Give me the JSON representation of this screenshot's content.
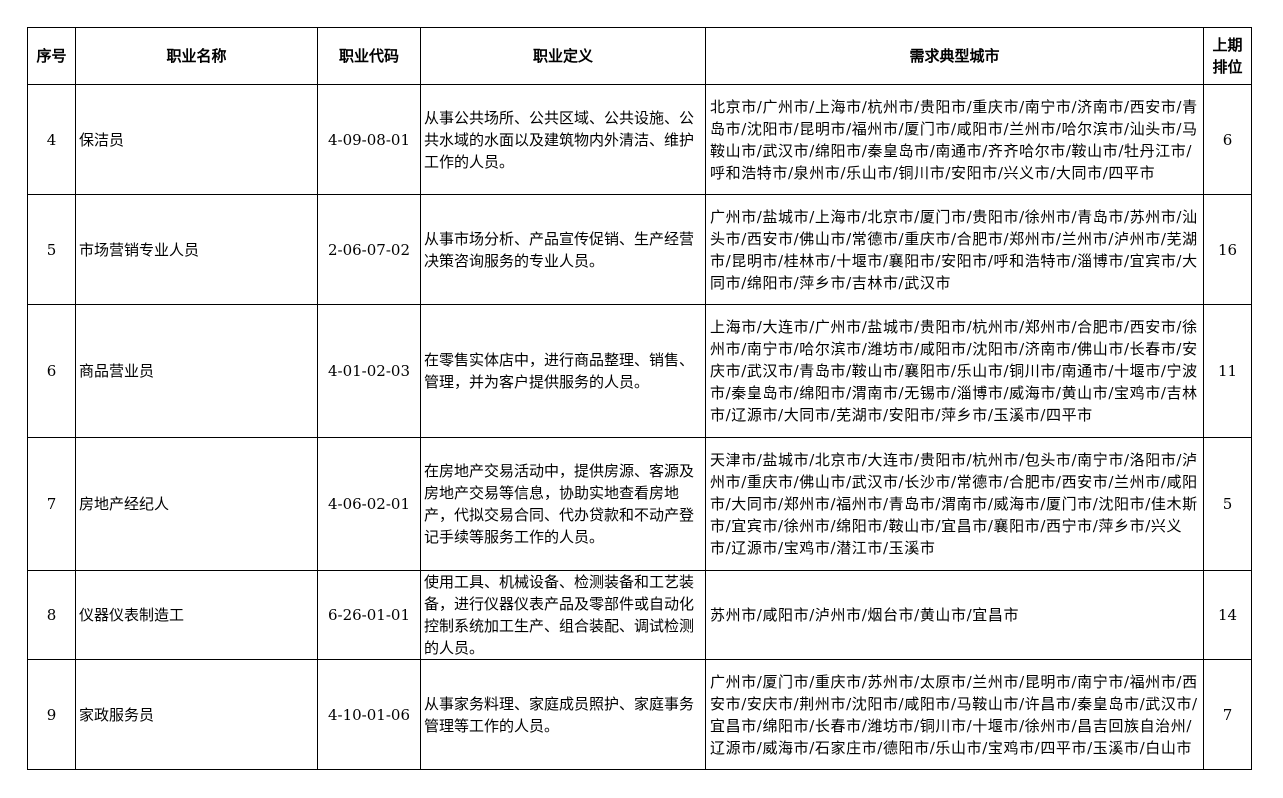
{
  "headers": [
    "序号",
    "职业名称",
    "职业代码",
    "职业定义",
    "需求典型城市",
    "上期排位"
  ],
  "rows": [
    {
      "no": "4",
      "name": "保洁员",
      "code": "4-09-08-01",
      "definition": "从事公共场所、公共区域、公共设施、公共水域的水面以及建筑物内外清洁、维护工作的人员。",
      "cities": "北京市/广州市/上海市/杭州市/贵阳市/重庆市/南宁市/济南市/西安市/青岛市/沈阳市/昆明市/福州市/厦门市/咸阳市/兰州市/哈尔滨市/汕头市/马鞍山市/武汉市/绵阳市/秦皇岛市/南通市/齐齐哈尔市/鞍山市/牡丹江市/呼和浩特市/泉州市/乐山市/铜川市/安阳市/兴义市/大同市/四平市",
      "prev": "6"
    },
    {
      "no": "5",
      "name": "市场营销专业人员",
      "code": "2-06-07-02",
      "definition": "从事市场分析、产品宣传促销、生产经营决策咨询服务的专业人员。",
      "cities": "广州市/盐城市/上海市/北京市/厦门市/贵阳市/徐州市/青岛市/苏州市/汕头市/西安市/佛山市/常德市/重庆市/合肥市/郑州市/兰州市/泸州市/芜湖市/昆明市/桂林市/十堰市/襄阳市/安阳市/呼和浩特市/淄博市/宜宾市/大同市/绵阳市/萍乡市/吉林市/武汉市",
      "prev": "16"
    },
    {
      "no": "6",
      "name": "商品营业员",
      "code": "4-01-02-03",
      "definition": "在零售实体店中，进行商品整理、销售、管理，并为客户提供服务的人员。",
      "cities": "上海市/大连市/广州市/盐城市/贵阳市/杭州市/郑州市/合肥市/西安市/徐州市/南宁市/哈尔滨市/潍坊市/咸阳市/沈阳市/济南市/佛山市/长春市/安庆市/武汉市/青岛市/鞍山市/襄阳市/乐山市/铜川市/南通市/十堰市/宁波市/秦皇岛市/绵阳市/渭南市/无锡市/淄博市/威海市/黄山市/宝鸡市/吉林市/辽源市/大同市/芜湖市/安阳市/萍乡市/玉溪市/四平市",
      "prev": "11"
    },
    {
      "no": "7",
      "name": "房地产经纪人",
      "code": "4-06-02-01",
      "definition": "在房地产交易活动中，提供房源、客源及房地产交易等信息，协助实地查看房地产，代拟交易合同、代办贷款和不动产登记手续等服务工作的人员。",
      "cities": "天津市/盐城市/北京市/大连市/贵阳市/杭州市/包头市/南宁市/洛阳市/泸州市/重庆市/佛山市/武汉市/长沙市/常德市/合肥市/西安市/兰州市/咸阳市/大同市/郑州市/福州市/青岛市/渭南市/威海市/厦门市/沈阳市/佳木斯市/宜宾市/徐州市/绵阳市/鞍山市/宜昌市/襄阳市/西宁市/萍乡市/兴义市/辽源市/宝鸡市/潜江市/玉溪市",
      "prev": "5"
    },
    {
      "no": "8",
      "name": "仪器仪表制造工",
      "code": "6-26-01-01",
      "definition": "使用工具、机械设备、检测装备和工艺装备，进行仪器仪表产品及零部件或自动化控制系统加工生产、组合装配、调试检测的人员。",
      "cities": "苏州市/咸阳市/泸州市/烟台市/黄山市/宜昌市",
      "prev": "14"
    },
    {
      "no": "9",
      "name": "家政服务员",
      "code": "4-10-01-06",
      "definition": "从事家务料理、家庭成员照护、家庭事务管理等工作的人员。",
      "cities": "广州市/厦门市/重庆市/苏州市/太原市/兰州市/昆明市/南宁市/福州市/西安市/安庆市/荆州市/沈阳市/咸阳市/马鞍山市/许昌市/秦皇岛市/武汉市/宜昌市/绵阳市/长春市/潍坊市/铜川市/十堰市/徐州市/昌吉回族自治州/辽源市/威海市/石家庄市/德阳市/乐山市/宝鸡市/四平市/玉溪市/白山市",
      "prev": "7"
    }
  ]
}
